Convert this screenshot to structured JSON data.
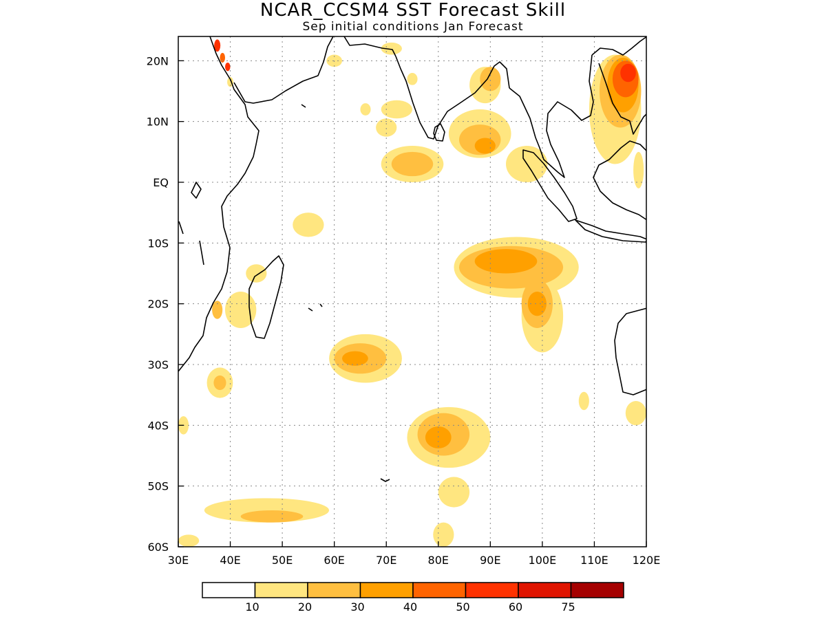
{
  "title": "NCAR_CCSM4 SST Forecast Skill",
  "subtitle": "Sep initial conditions  Jan Forecast",
  "map": {
    "lon_range": [
      30,
      120
    ],
    "lat_range": [
      -60,
      24
    ],
    "lon_ticks": [
      {
        "value": 30,
        "label": "30E"
      },
      {
        "value": 40,
        "label": "40E"
      },
      {
        "value": 50,
        "label": "50E"
      },
      {
        "value": 60,
        "label": "60E"
      },
      {
        "value": 70,
        "label": "70E"
      },
      {
        "value": 80,
        "label": "80E"
      },
      {
        "value": 90,
        "label": "90E"
      },
      {
        "value": 100,
        "label": "100E"
      },
      {
        "value": 110,
        "label": "110E"
      },
      {
        "value": 120,
        "label": "120E"
      }
    ],
    "lat_ticks": [
      {
        "value": 20,
        "label": "20N"
      },
      {
        "value": 10,
        "label": "10N"
      },
      {
        "value": 0,
        "label": "EQ"
      },
      {
        "value": -10,
        "label": "10S"
      },
      {
        "value": -20,
        "label": "20S"
      },
      {
        "value": -30,
        "label": "30S"
      },
      {
        "value": -40,
        "label": "40S"
      },
      {
        "value": -50,
        "label": "50S"
      },
      {
        "value": -60,
        "label": "60S"
      }
    ],
    "grid": true,
    "skill_regions": [
      {
        "level": 10,
        "lon": 75,
        "lat": 3,
        "rlon": 6,
        "rlat": 3
      },
      {
        "level": 20,
        "lon": 75,
        "lat": 3,
        "rlon": 4,
        "rlat": 2
      },
      {
        "level": 10,
        "lon": 88,
        "lat": 8,
        "rlon": 6,
        "rlat": 4
      },
      {
        "level": 20,
        "lon": 88,
        "lat": 7,
        "rlon": 4,
        "rlat": 2.5
      },
      {
        "level": 30,
        "lon": 89,
        "lat": 6,
        "rlon": 2,
        "rlat": 1.3
      },
      {
        "level": 10,
        "lon": 72,
        "lat": 12,
        "rlon": 3,
        "rlat": 1.5
      },
      {
        "level": 10,
        "lon": 89,
        "lat": 16,
        "rlon": 3,
        "rlat": 3
      },
      {
        "level": 20,
        "lon": 90,
        "lat": 17,
        "rlon": 2,
        "rlat": 2
      },
      {
        "level": 10,
        "lon": 97,
        "lat": 3,
        "rlon": 4,
        "rlat": 3
      },
      {
        "level": 10,
        "lon": 95,
        "lat": -14,
        "rlon": 12,
        "rlat": 5
      },
      {
        "level": 20,
        "lon": 94,
        "lat": -14,
        "rlon": 10,
        "rlat": 3.5
      },
      {
        "level": 30,
        "lon": 93,
        "lat": -13,
        "rlon": 6,
        "rlat": 2
      },
      {
        "level": 10,
        "lon": 100,
        "lat": -22,
        "rlon": 4,
        "rlat": 6
      },
      {
        "level": 20,
        "lon": 99,
        "lat": -20,
        "rlon": 3,
        "rlat": 4
      },
      {
        "level": 30,
        "lon": 99,
        "lat": -20,
        "rlon": 1.8,
        "rlat": 2
      },
      {
        "level": 10,
        "lon": 66,
        "lat": -29,
        "rlon": 7,
        "rlat": 4
      },
      {
        "level": 20,
        "lon": 65,
        "lat": -29,
        "rlon": 5,
        "rlat": 2.5
      },
      {
        "level": 30,
        "lon": 64,
        "lat": -29,
        "rlon": 2.5,
        "rlat": 1.2
      },
      {
        "level": 10,
        "lon": 82,
        "lat": -42,
        "rlon": 8,
        "rlat": 5
      },
      {
        "level": 20,
        "lon": 81,
        "lat": -41.5,
        "rlon": 5,
        "rlat": 3.5
      },
      {
        "level": 30,
        "lon": 80,
        "lat": -42,
        "rlon": 2.5,
        "rlat": 1.8
      },
      {
        "level": 10,
        "lon": 83,
        "lat": -51,
        "rlon": 3,
        "rlat": 2.5
      },
      {
        "level": 10,
        "lon": 47,
        "lat": -54,
        "rlon": 12,
        "rlat": 2
      },
      {
        "level": 20,
        "lon": 48,
        "lat": -55,
        "rlon": 6,
        "rlat": 1
      },
      {
        "level": 10,
        "lon": 42,
        "lat": -21,
        "rlon": 3,
        "rlat": 3
      },
      {
        "level": 20,
        "lon": 37.5,
        "lat": -21,
        "rlon": 1,
        "rlat": 1.5
      },
      {
        "level": 10,
        "lon": 38,
        "lat": -33,
        "rlon": 2.5,
        "rlat": 2.5
      },
      {
        "level": 20,
        "lon": 38,
        "lat": -33,
        "rlon": 1.2,
        "rlat": 1.2
      },
      {
        "level": 10,
        "lon": 45,
        "lat": -15,
        "rlon": 2,
        "rlat": 1.5
      },
      {
        "level": 10,
        "lon": 71,
        "lat": 22,
        "rlon": 2,
        "rlat": 1
      },
      {
        "level": 10,
        "lon": 75,
        "lat": 17,
        "rlon": 1,
        "rlat": 1
      },
      {
        "level": 10,
        "lon": 66,
        "lat": 12,
        "rlon": 1,
        "rlat": 1
      },
      {
        "level": 10,
        "lon": 60,
        "lat": 20,
        "rlon": 1.5,
        "rlat": 1
      },
      {
        "level": 10,
        "lon": 55,
        "lat": -7,
        "rlon": 3,
        "rlat": 2
      },
      {
        "level": 10,
        "lon": 70,
        "lat": 9,
        "rlon": 2,
        "rlat": 1.5
      },
      {
        "level": 10,
        "lon": 31,
        "lat": -40,
        "rlon": 1,
        "rlat": 1.5
      },
      {
        "level": 10,
        "lon": 118,
        "lat": -38,
        "rlon": 2,
        "rlat": 2
      },
      {
        "level": 10,
        "lon": 108,
        "lat": -36,
        "rlon": 1,
        "rlat": 1.5
      },
      {
        "level": 10,
        "lon": 81,
        "lat": -58,
        "rlon": 2,
        "rlat": 2
      },
      {
        "level": 10,
        "lon": 32,
        "lat": -59,
        "rlon": 2,
        "rlat": 1
      },
      {
        "level": 10,
        "lon": 114,
        "lat": 12,
        "rlon": 5,
        "rlat": 9
      },
      {
        "level": 20,
        "lon": 115,
        "lat": 15,
        "rlon": 4,
        "rlat": 6
      },
      {
        "level": 30,
        "lon": 115.5,
        "lat": 16,
        "rlon": 3,
        "rlat": 4.5
      },
      {
        "level": 40,
        "lon": 116,
        "lat": 17,
        "rlon": 2.5,
        "rlat": 3
      },
      {
        "level": 50,
        "lon": 116.5,
        "lat": 18,
        "rlon": 1.5,
        "rlat": 1.5
      },
      {
        "level": 10,
        "lon": 118.5,
        "lat": 2,
        "rlon": 1,
        "rlat": 3
      },
      {
        "level": 10,
        "lon": 40,
        "lat": 16.5,
        "rlon": 0.6,
        "rlat": 0.8
      },
      {
        "level": 40,
        "lon": 38.5,
        "lat": 20.5,
        "rlon": 0.5,
        "rlat": 0.8
      },
      {
        "level": 50,
        "lon": 37.5,
        "lat": 22.5,
        "rlon": 0.6,
        "rlat": 1
      },
      {
        "level": 50,
        "lon": 39.5,
        "lat": 19,
        "rlon": 0.5,
        "rlat": 0.7
      }
    ]
  },
  "colorbar": {
    "bins": [
      {
        "color": "#ffffff"
      },
      {
        "color": "#ffe680"
      },
      {
        "color": "#ffbf40"
      },
      {
        "color": "#ffa000"
      },
      {
        "color": "#ff6400"
      },
      {
        "color": "#ff3200"
      },
      {
        "color": "#e01400"
      },
      {
        "color": "#a50000"
      }
    ],
    "labels": [
      "10",
      "20",
      "30",
      "40",
      "50",
      "60",
      "75"
    ]
  },
  "level_colors": {
    "10": "#ffe680",
    "20": "#ffbf40",
    "30": "#ffa000",
    "40": "#ff6400",
    "50": "#ff3200",
    "60": "#e01400",
    "75": "#a50000"
  }
}
